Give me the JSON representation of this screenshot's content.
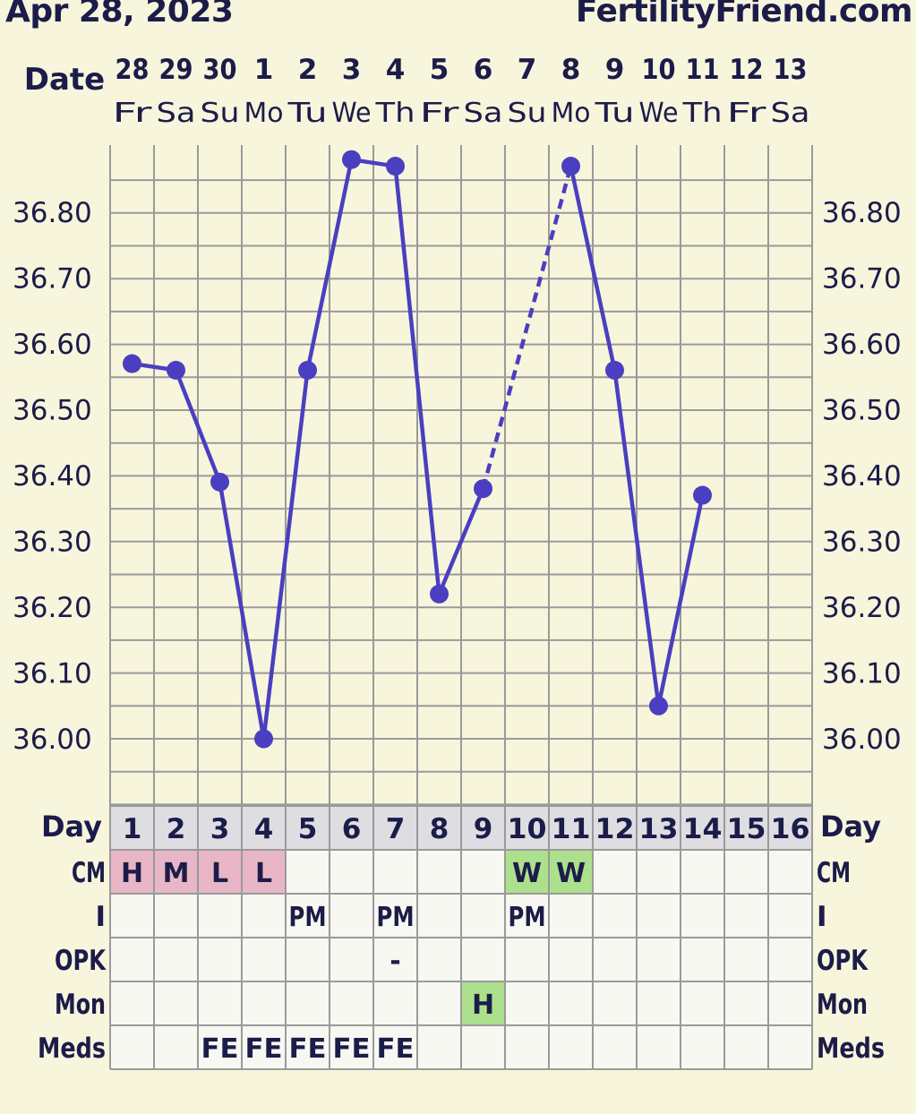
{
  "header": {
    "date": "Apr 28, 2023",
    "site": "FertilityFriend.com"
  },
  "labels": {
    "date": "Date",
    "day": "Day"
  },
  "colors": {
    "line": "#4a3fc0",
    "grid": "#9a9a9a",
    "text": "#1c1c4a",
    "cm_pink": "#e8b6c6",
    "cm_green": "#ade08c",
    "row_header": "#dedee2",
    "cell": "#f8f8f2"
  },
  "dates": {
    "numbers": [
      "28",
      "29",
      "30",
      "1",
      "2",
      "3",
      "4",
      "5",
      "6",
      "7",
      "8",
      "9",
      "10",
      "11",
      "12",
      "13"
    ],
    "weekdays": [
      "Fr",
      "Sa",
      "Su",
      "Mo",
      "Tu",
      "We",
      "Th",
      "Fr",
      "Sa",
      "Su",
      "Mo",
      "Tu",
      "We",
      "Th",
      "Fr",
      "Sa"
    ]
  },
  "chart_data": {
    "type": "line",
    "x": [
      1,
      2,
      3,
      4,
      5,
      6,
      7,
      8,
      9,
      10,
      11,
      12,
      13,
      14,
      15,
      16
    ],
    "y_ticks": [
      "36.80",
      "36.70",
      "36.60",
      "36.50",
      "36.40",
      "36.30",
      "36.20",
      "36.10",
      "36.00"
    ],
    "ylim": [
      35.93,
      36.91
    ],
    "grid": true,
    "series": [
      {
        "values": [
          36.57,
          36.56,
          36.39,
          36.0,
          36.56,
          36.88,
          36.87,
          36.22,
          36.38,
          null,
          36.87,
          36.56,
          36.05,
          36.37,
          null,
          null
        ]
      }
    ],
    "dashed_segments": [
      [
        9,
        11
      ]
    ]
  },
  "table": {
    "days": [
      "1",
      "2",
      "3",
      "4",
      "5",
      "6",
      "7",
      "8",
      "9",
      "10",
      "11",
      "12",
      "13",
      "14",
      "15",
      "16"
    ],
    "rows": [
      {
        "label": "CM",
        "cells": [
          "H",
          "M",
          "L",
          "L",
          "",
          "",
          "",
          "",
          "",
          "W",
          "W",
          "",
          "",
          "",
          "",
          ""
        ],
        "fills": [
          "pink",
          "pink",
          "pink",
          "pink",
          "",
          "",
          "",
          "",
          "",
          "green",
          "green",
          "",
          "",
          "",
          "",
          ""
        ]
      },
      {
        "label": "I",
        "cells": [
          "",
          "",
          "",
          "",
          "PM",
          "",
          "PM",
          "",
          "",
          "PM",
          "",
          "",
          "",
          "",
          "",
          ""
        ],
        "fills": [
          "",
          "",
          "",
          "",
          "",
          "",
          "",
          "",
          "",
          "",
          "",
          "",
          "",
          "",
          "",
          ""
        ]
      },
      {
        "label": "OPK",
        "cells": [
          "",
          "",
          "",
          "",
          "",
          "",
          "-",
          "",
          "",
          "",
          "",
          "",
          "",
          "",
          "",
          ""
        ],
        "fills": [
          "",
          "",
          "",
          "",
          "",
          "",
          "",
          "",
          "",
          "",
          "",
          "",
          "",
          "",
          "",
          ""
        ]
      },
      {
        "label": "Mon",
        "cells": [
          "",
          "",
          "",
          "",
          "",
          "",
          "",
          "",
          "H",
          "",
          "",
          "",
          "",
          "",
          "",
          ""
        ],
        "fills": [
          "",
          "",
          "",
          "",
          "",
          "",
          "",
          "",
          "green",
          "",
          "",
          "",
          "",
          "",
          "",
          ""
        ]
      },
      {
        "label": "Meds",
        "cells": [
          "",
          "",
          "FE",
          "FE",
          "FE",
          "FE",
          "FE",
          "",
          "",
          "",
          "",
          "",
          "",
          "",
          "",
          ""
        ],
        "fills": [
          "",
          "",
          "",
          "",
          "",
          "",
          "",
          "",
          "",
          "",
          "",
          "",
          "",
          "",
          "",
          ""
        ]
      }
    ]
  }
}
